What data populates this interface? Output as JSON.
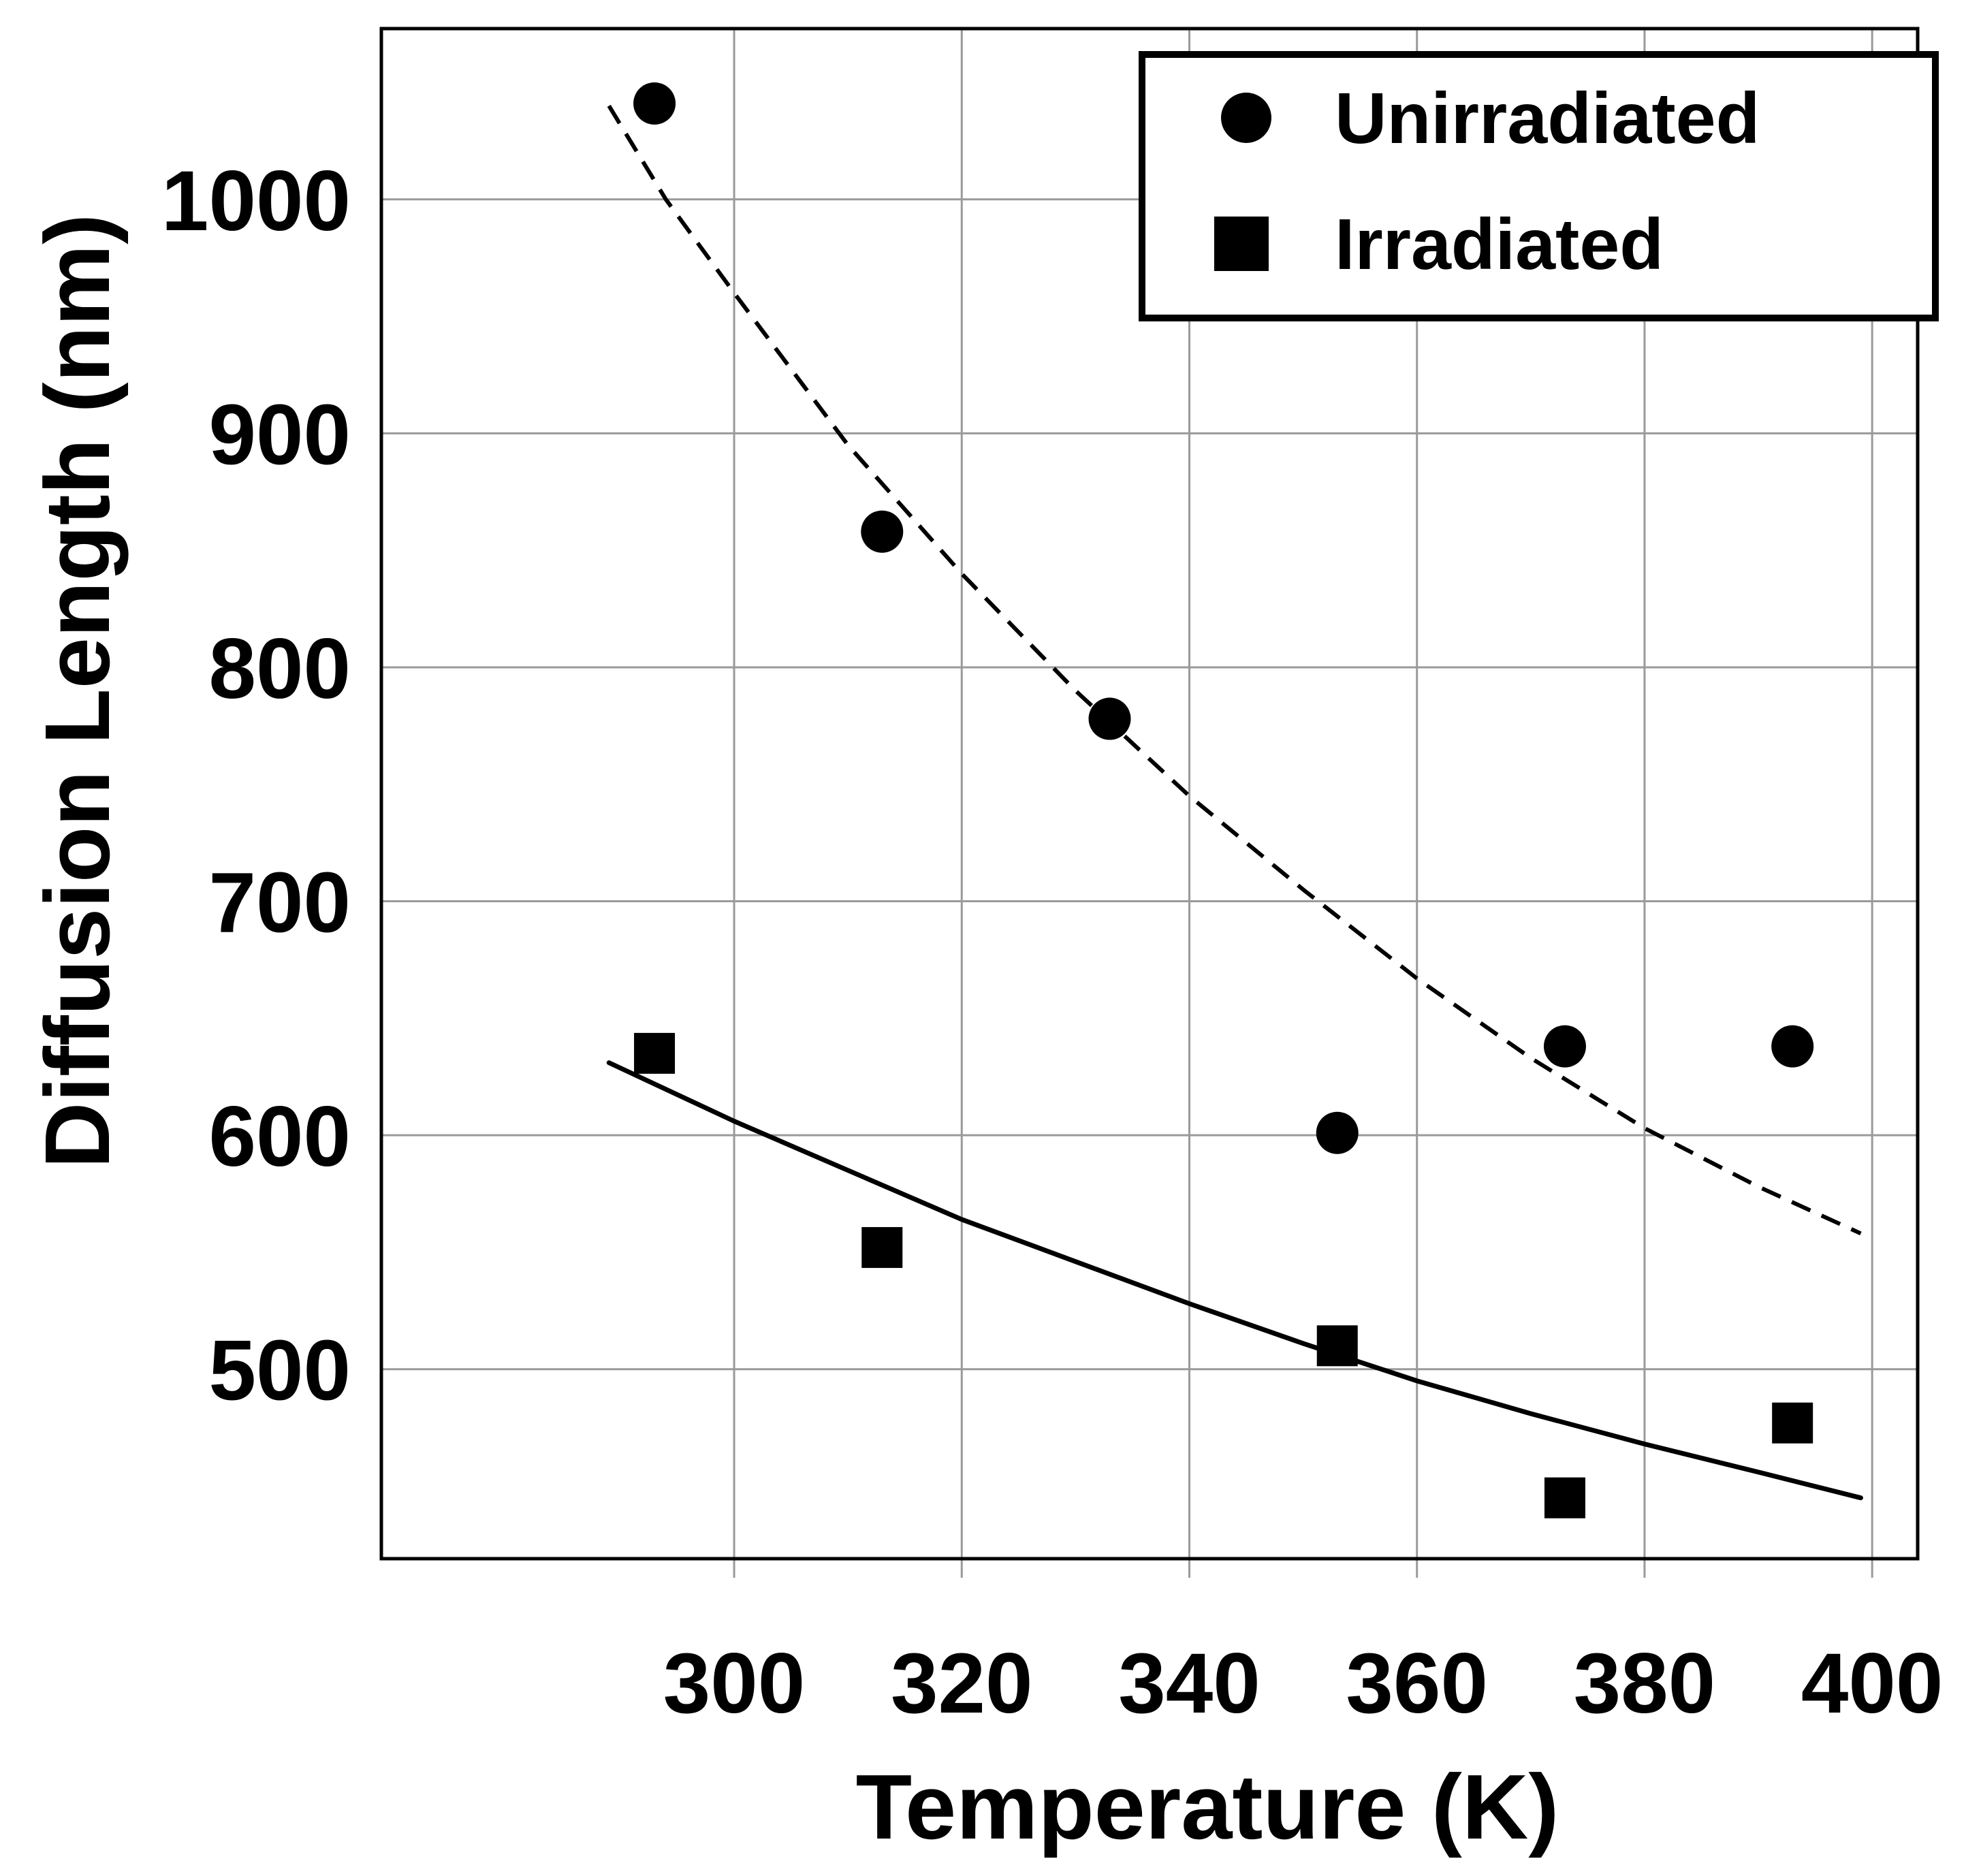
{
  "chart_data": {
    "type": "scatter",
    "title": "",
    "xlabel": "Temperature (K)",
    "ylabel": "Diffusion Length (nm)",
    "xlim": [
      269,
      404
    ],
    "ylim": [
      419,
      1073
    ],
    "xticks": [
      300,
      320,
      340,
      360,
      380,
      400
    ],
    "yticks": [
      500,
      600,
      700,
      800,
      900,
      1000
    ],
    "grid": true,
    "legend_position": "top-right",
    "series": [
      {
        "name": "Unirradiated",
        "marker": "circle",
        "x": [
          293,
          313,
          333,
          353,
          373,
          393
        ],
        "y": [
          1041,
          858,
          778,
          601,
          638,
          638
        ],
        "fit": {
          "style": "dashed",
          "x": [
            289,
            294,
            300,
            310,
            320,
            330,
            340,
            350,
            360,
            370,
            380,
            390,
            399
          ],
          "y": [
            1040,
            1000,
            960,
            895,
            840,
            790,
            745,
            705,
            667,
            633,
            603,
            578,
            558
          ]
        }
      },
      {
        "name": "Irradiated",
        "marker": "square",
        "x": [
          293,
          313,
          353,
          373,
          393
        ],
        "y": [
          635,
          552,
          510,
          445,
          477
        ],
        "fit": {
          "style": "solid",
          "x": [
            289,
            300,
            310,
            320,
            330,
            340,
            350,
            360,
            370,
            380,
            390,
            399
          ],
          "y": [
            631,
            606,
            585,
            564,
            546,
            528,
            511,
            495,
            481,
            468,
            456,
            445
          ]
        }
      }
    ],
    "legend": [
      "Unirradiated",
      "Irradiated"
    ]
  }
}
